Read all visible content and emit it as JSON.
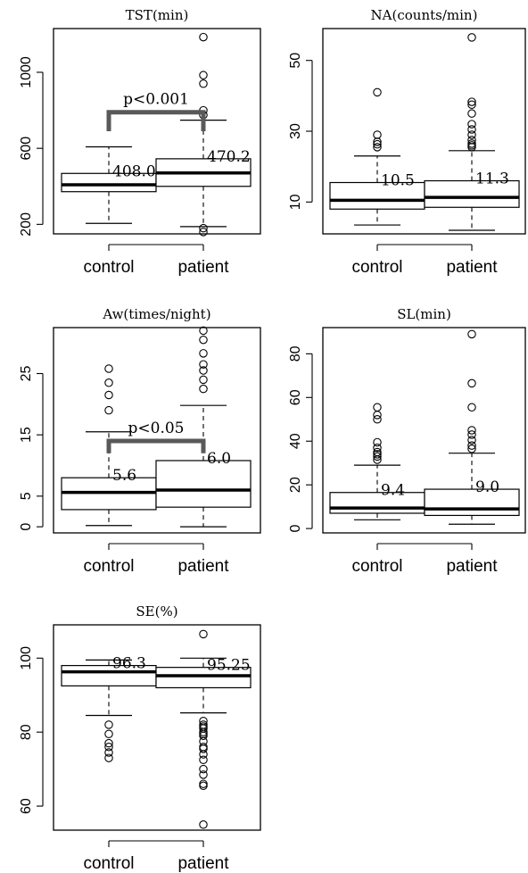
{
  "chart_data": [
    {
      "type": "boxplot",
      "title": "TST(min)",
      "categories": [
        "control",
        "patient"
      ],
      "ylim": [
        150,
        1230
      ],
      "yticks": [
        200,
        600,
        1000
      ],
      "boxes": [
        {
          "name": "control",
          "whisker_low": 205,
          "q1": 372,
          "median": 408,
          "q3": 468,
          "whisker_high": 608,
          "outliers": [],
          "median_label": "408.0"
        },
        {
          "name": "patient",
          "whisker_low": 188,
          "q1": 400,
          "median": 470.2,
          "q3": 545,
          "whisker_high": 748,
          "outliers": [
            160,
            180,
            775,
            800,
            940,
            985,
            1185
          ],
          "median_label": "470.2"
        }
      ],
      "significance": {
        "label": "p<0.001",
        "y": 790,
        "drop_to": 690
      }
    },
    {
      "type": "boxplot",
      "title": "NA(counts/min)",
      "categories": [
        "control",
        "patient"
      ],
      "ylim": [
        1,
        59
      ],
      "yticks": [
        10,
        30,
        50
      ],
      "boxes": [
        {
          "name": "control",
          "whisker_low": 3.5,
          "q1": 8,
          "median": 10.5,
          "q3": 15.5,
          "whisker_high": 23,
          "outliers": [
            25.5,
            26.3,
            27,
            29,
            41
          ],
          "median_label": "10.5"
        },
        {
          "name": "patient",
          "whisker_low": 2,
          "q1": 8.5,
          "median": 11.3,
          "q3": 16,
          "whisker_high": 24.5,
          "outliers": [
            25.5,
            26,
            26.5,
            27.5,
            29,
            30.5,
            32,
            35,
            37.5,
            38.3,
            56.5
          ],
          "median_label": "11.3"
        }
      ]
    },
    {
      "type": "boxplot",
      "title": "Aw(times/night)",
      "categories": [
        "control",
        "patient"
      ],
      "ylim": [
        -1,
        32.5
      ],
      "yticks": [
        0,
        5,
        15,
        25
      ],
      "boxes": [
        {
          "name": "control",
          "whisker_low": 0.2,
          "q1": 2.8,
          "median": 5.6,
          "q3": 8,
          "whisker_high": 15.5,
          "outliers": [
            19,
            21.5,
            23.5,
            25.8
          ],
          "median_label": "5.6"
        },
        {
          "name": "patient",
          "whisker_low": 0,
          "q1": 3.2,
          "median": 6.0,
          "q3": 10.8,
          "whisker_high": 19.8,
          "outliers": [
            22.5,
            24,
            25.5,
            26.5,
            28.3,
            30.5,
            32
          ],
          "median_label": "6.0"
        }
      ],
      "significance": {
        "label": "p<0.05",
        "y": 14,
        "drop_to": 12
      }
    },
    {
      "type": "boxplot",
      "title": "SL(min)",
      "categories": [
        "control",
        "patient"
      ],
      "ylim": [
        -2,
        92
      ],
      "yticks": [
        0,
        20,
        40,
        60,
        80
      ],
      "boxes": [
        {
          "name": "control",
          "whisker_low": 4,
          "q1": 7,
          "median": 9.4,
          "q3": 16.5,
          "whisker_high": 29,
          "outliers": [
            31.5,
            33,
            34,
            35,
            37,
            39.5,
            50,
            52,
            55.5
          ],
          "median_label": "9.4"
        },
        {
          "name": "patient",
          "whisker_low": 2,
          "q1": 6,
          "median": 9.0,
          "q3": 18,
          "whisker_high": 34.5,
          "outliers": [
            36.5,
            38,
            40.5,
            43,
            45,
            55.5,
            66.5,
            89
          ],
          "median_label": "9.0"
        }
      ]
    },
    {
      "type": "boxplot",
      "title": "SE(%)",
      "categories": [
        "control",
        "patient"
      ],
      "ylim": [
        53.5,
        109
      ],
      "yticks": [
        60,
        80,
        100
      ],
      "boxes": [
        {
          "name": "control",
          "whisker_low": 84.5,
          "q1": 92.5,
          "median": 96.3,
          "q3": 98,
          "whisker_high": 99.5,
          "outliers": [
            73,
            74.5,
            76,
            77,
            79.5,
            82
          ],
          "median_label": "96.3"
        },
        {
          "name": "patient",
          "whisker_low": 85.2,
          "q1": 92,
          "median": 95.25,
          "q3": 97.5,
          "whisker_high": 100,
          "outliers": [
            55,
            65.5,
            66,
            68.5,
            70,
            72.5,
            74,
            75.5,
            76,
            77.5,
            79,
            79.5,
            80,
            81,
            81.5,
            82,
            83,
            106.5
          ],
          "median_label": "95.25"
        }
      ]
    }
  ]
}
